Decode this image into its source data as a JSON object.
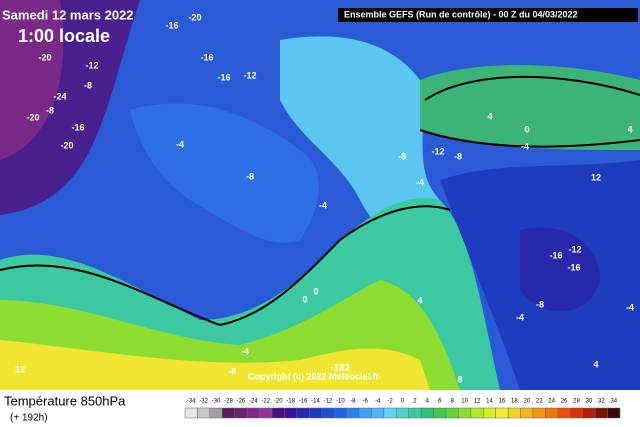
{
  "header": {
    "date": "Samedi 12 mars 2022",
    "time": "1:00 locale",
    "run": "Ensemble GEFS  (Run de contrôle)  - 00 Z du 04/03/2022"
  },
  "map": {
    "contour_labels": [
      -20,
      -16,
      -12,
      -16,
      -16,
      -12,
      -20,
      -8,
      -24,
      -20,
      -8,
      -16,
      -20,
      -4,
      -8,
      -4,
      -8,
      -12,
      -8,
      4,
      0,
      -4,
      -4,
      -12,
      -16,
      -16,
      -8,
      -4,
      0,
      0,
      4,
      -4,
      -8,
      12,
      8,
      12,
      -4,
      12,
      4,
      4,
      -12
    ],
    "copyright": "Copyright (c) 2022 Meteociel.fr"
  },
  "footer": {
    "title": "Température 850hPa",
    "lead": "(+ 192h)"
  },
  "scale": {
    "ticks": [
      -34,
      -32,
      -30,
      -28,
      -26,
      -24,
      -22,
      -20,
      -18,
      -16,
      -14,
      -12,
      -10,
      -8,
      -6,
      -4,
      -2,
      0,
      2,
      4,
      6,
      8,
      10,
      12,
      14,
      16,
      18,
      20,
      22,
      24,
      26,
      28,
      30,
      32,
      34
    ],
    "colors": [
      "#e6e6e6",
      "#c8c8c8",
      "#a0a0a0",
      "#5a1e5a",
      "#6e1e78",
      "#82288c",
      "#9632a0",
      "#4b0f82",
      "#3c1496",
      "#2828aa",
      "#1e3cbe",
      "#1e50d2",
      "#1e64e6",
      "#2882f0",
      "#3ca0f5",
      "#50b4fa",
      "#64d2ff",
      "#50d2c8",
      "#3cc8a0",
      "#32be78",
      "#3cc850",
      "#64d23c",
      "#8cdc32",
      "#b4e628",
      "#d2ee28",
      "#f0f032",
      "#f5d228",
      "#f5b41e",
      "#f09614",
      "#eb780f",
      "#e6500a",
      "#d23205",
      "#b41e05",
      "#781405",
      "#3c0a0a"
    ]
  }
}
